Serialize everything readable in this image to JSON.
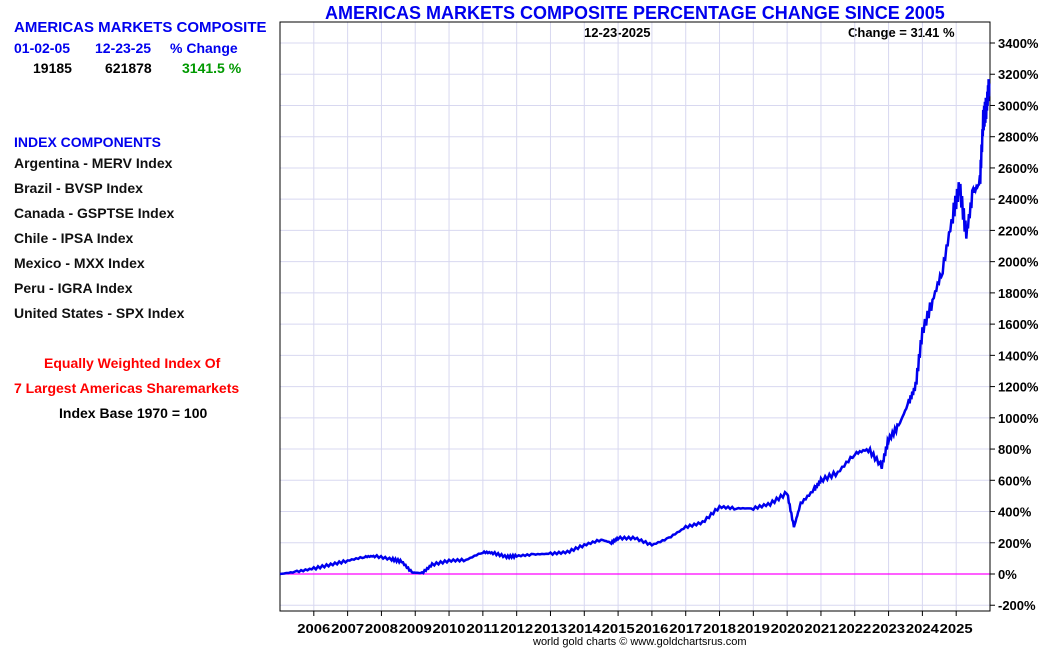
{
  "summary": {
    "title": "AMERICAS MARKETS COMPOSITE",
    "headers": [
      "01-02-05",
      "12-23-25",
      "% Change"
    ],
    "values": [
      "19185",
      "621878",
      "3141.5 %"
    ]
  },
  "components": {
    "title": "INDEX COMPONENTS",
    "items": [
      "Argentina - MERV Index",
      "Brazil - BVSP Index",
      "Canada - GSPTSE Index",
      "Chile - IPSA Index",
      "Mexico - MXX Index",
      "Peru - IGRA Index",
      "United States - SPX Index"
    ]
  },
  "notes": {
    "line1": "Equally Weighted Index Of",
    "line2": "7 Largest Americas Sharemarkets",
    "line3": "Index Base 1970 = 100"
  },
  "colors": {
    "series": "#0000ee",
    "zero_line": "#ff00ff",
    "grid": "#d8d8f0",
    "title": "#0000ee"
  },
  "chart_data": {
    "type": "line",
    "title": "AMERICAS MARKETS COMPOSITE PERCENTAGE CHANGE SINCE 2005",
    "date_label": "12-23-2025",
    "change_label": "Change = 3141 %",
    "footer": "world gold charts © www.goldchartsrus.com",
    "xlim": [
      2005,
      2026
    ],
    "ylim": [
      -300,
      3500
    ],
    "yticks": [
      -200,
      0,
      200,
      400,
      600,
      800,
      1000,
      1200,
      1400,
      1600,
      1800,
      2000,
      2200,
      2400,
      2600,
      2800,
      3000,
      3200,
      3400
    ],
    "ytick_labels": [
      "-200%",
      "0%",
      "200%",
      "400%",
      "600%",
      "800%",
      "1000%",
      "1200%",
      "1400%",
      "1600%",
      "1800%",
      "2000%",
      "2200%",
      "2400%",
      "2600%",
      "2800%",
      "3000%",
      "3200%",
      "3400%"
    ],
    "xticks": [
      2006,
      2007,
      2008,
      2009,
      2010,
      2011,
      2012,
      2013,
      2014,
      2015,
      2016,
      2017,
      2018,
      2019,
      2020,
      2021,
      2022,
      2023,
      2024,
      2025
    ],
    "xtick_labels": [
      "2006",
      "2007",
      "2008",
      "2009",
      "2010",
      "2011",
      "2012",
      "2013",
      "2014",
      "2015",
      "2016",
      "2017",
      "2018",
      "2019",
      "2020",
      "2021",
      "2022",
      "2023",
      "2024",
      "2025"
    ],
    "series": [
      {
        "name": "Americas Markets Composite % change",
        "x": [
          2005.0,
          2005.5,
          2006.0,
          2006.5,
          2007.0,
          2007.5,
          2007.8,
          2008.3,
          2008.6,
          2008.9,
          2009.2,
          2009.5,
          2010.0,
          2010.5,
          2011.0,
          2011.3,
          2011.7,
          2012.0,
          2012.5,
          2013.0,
          2013.5,
          2014.0,
          2014.5,
          2014.8,
          2015.0,
          2015.5,
          2016.0,
          2016.5,
          2017.0,
          2017.5,
          2018.0,
          2018.5,
          2019.0,
          2019.5,
          2020.0,
          2020.2,
          2020.4,
          2020.8,
          2021.0,
          2021.5,
          2022.0,
          2022.4,
          2022.8,
          2023.0,
          2023.3,
          2023.6,
          2023.8,
          2024.0,
          2024.3,
          2024.6,
          2024.9,
          2025.1,
          2025.3,
          2025.5,
          2025.7,
          2025.8,
          2025.9,
          2025.98
        ],
        "y": [
          0,
          15,
          35,
          60,
          85,
          110,
          115,
          95,
          80,
          10,
          5,
          60,
          85,
          90,
          140,
          135,
          110,
          115,
          125,
          130,
          140,
          185,
          220,
          200,
          230,
          230,
          185,
          230,
          300,
          330,
          430,
          420,
          420,
          450,
          520,
          300,
          450,
          540,
          600,
          650,
          770,
          800,
          690,
          860,
          950,
          1100,
          1200,
          1550,
          1750,
          1950,
          2300,
          2480,
          2170,
          2450,
          2500,
          2900,
          3000,
          3141
        ]
      }
    ]
  }
}
